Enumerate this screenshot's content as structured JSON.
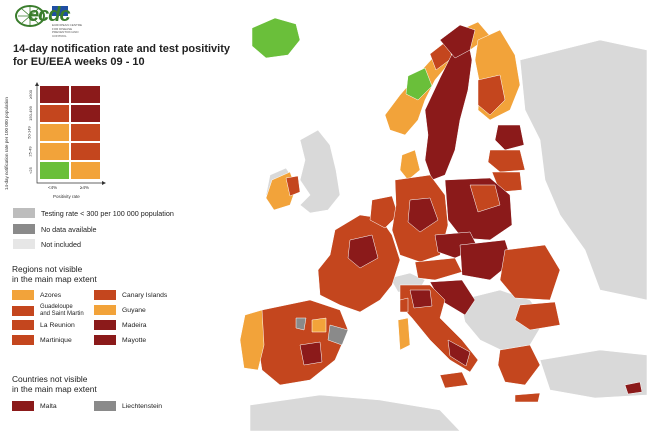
{
  "logo": {
    "text": "ecdc",
    "subtitle": "EUROPEAN CENTRE FOR DISEASE PREVENTION AND CONTROL"
  },
  "title_line1": "14-day notification rate and test positivity",
  "title_line2": "for EU/EEA weeks 09 - 10",
  "matrix": {
    "y_label": "14-day notification rate per 100 000 population",
    "y_ticks": [
      "<25",
      "25-49",
      "50-149",
      "150-499",
      "≥500"
    ],
    "x_ticks": [
      "<4%",
      "≥4%"
    ],
    "x_label": "Positivity rate"
  },
  "legend": {
    "testing": "Testing rate < 300 per 100 000 population",
    "no_data": "No data available",
    "not_included": "Not included"
  },
  "regions": {
    "heading1": "Regions not visible",
    "heading2": "in the main map extent",
    "items": [
      {
        "label": "Azores",
        "color": "#f2a33a"
      },
      {
        "label": "Canary Islands",
        "color": "#c4461e"
      },
      {
        "label": "Guadeloupe",
        "label2": "and Saint Martin",
        "color": "#c4461e"
      },
      {
        "label": "Guyane",
        "color": "#f2a33a"
      },
      {
        "label": "La Reunion",
        "color": "#c4461e"
      },
      {
        "label": "Madeira",
        "color": "#8b1a1a"
      },
      {
        "label": "Martinique",
        "color": "#c4461e"
      },
      {
        "label": "Mayotte",
        "color": "#8b1a1a"
      }
    ]
  },
  "countries": {
    "heading1": "Countries not visible",
    "heading2": "in the main map extent",
    "items": [
      {
        "label": "Malta",
        "color": "#8b1a1a"
      },
      {
        "label": "Liechtenstein",
        "color": "#8a8a8a"
      }
    ]
  },
  "colors": {
    "dark_red": "#8b1a1a",
    "red": "#c4461e",
    "orange": "#f2a33a",
    "green": "#6abf3a",
    "grey_testing": "#bdbdbd",
    "grey_nodata": "#8a8a8a",
    "grey_notincluded": "#e6e6e6"
  }
}
